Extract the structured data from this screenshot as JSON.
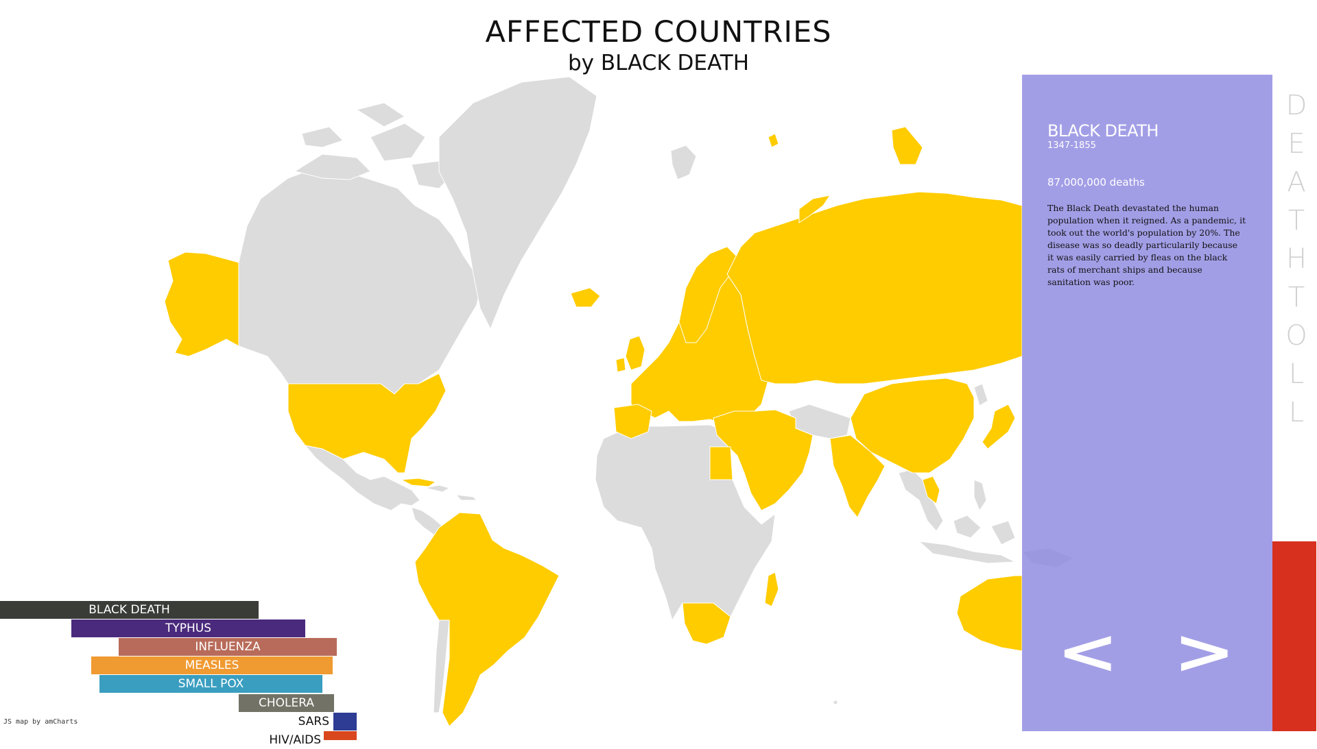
{
  "header": {
    "title": "AFFECTED COUNTRIES",
    "subtitle": "by BLACK DEATH"
  },
  "map": {
    "credit": "JS map by amCharts",
    "colors": {
      "affected": "#ffcc00",
      "unaffected": "#dcdcdc",
      "border": "#ffffff"
    },
    "affected_regions": [
      "North America (USA, Alaska)",
      "South America",
      "Europe",
      "Russia",
      "Middle East",
      "China",
      "India",
      "Egypt",
      "South Africa",
      "Australia",
      "Japan",
      "Iceland"
    ]
  },
  "legend": {
    "diseases": [
      {
        "name": "BLACK DEATH",
        "color": "#3a3c38"
      },
      {
        "name": "TYPHUS",
        "color": "#4a2a7c"
      },
      {
        "name": "INFLUENZA",
        "color": "#b86b5a"
      },
      {
        "name": "MEASLES",
        "color": "#f09a32"
      },
      {
        "name": "SMALL POX",
        "color": "#3a9ec0"
      },
      {
        "name": "CHOLERA",
        "color": "#727366"
      },
      {
        "name": "SARS",
        "color": "#2e3c94"
      },
      {
        "name": "HIV/AIDS",
        "color": "#d9471d"
      }
    ]
  },
  "panel": {
    "name": "BLACK DEATH",
    "years": "1347-1855",
    "deaths": "87,000,000 deaths",
    "description": "The Black Death devastated the human population when it reigned. As a pandemic, it took out the world's population by 20%. The disease was so deadly particularily because it was easily carried by fleas on the black rats of merchant ships and because sanitation was poor.",
    "prev_label": "<",
    "next_label": ">",
    "background": "#8e89e0"
  },
  "death_toll": {
    "label": "DEATHTOLL",
    "letters": [
      "D",
      "E",
      "A",
      "T",
      "H",
      "T",
      "O",
      "L",
      "L"
    ],
    "bar_color": "#d7301f"
  }
}
